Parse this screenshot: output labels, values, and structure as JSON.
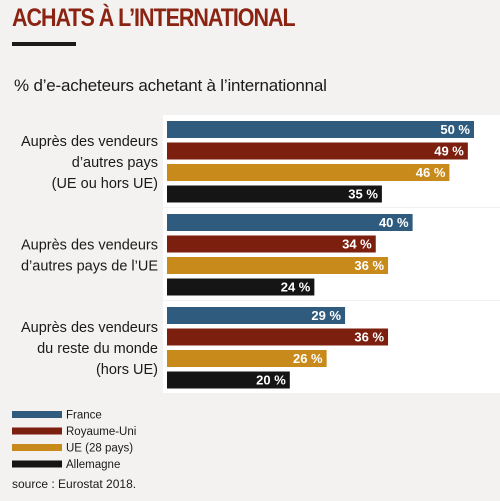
{
  "header": {
    "title": "ACHATS À L’INTERNATIONAL",
    "subtitle": "% d’e-acheteurs achetant à l’internationnal"
  },
  "footer": {
    "source": "source : Eurostat 2018."
  },
  "colors": {
    "France": "#2e5b7e",
    "Royaume-Uni": "#7d1f0f",
    "UE (28 pays)": "#c98a1c",
    "Allemagne": "#151515"
  },
  "chart_data": {
    "type": "bar",
    "orientation": "horizontal",
    "title": "",
    "xlabel": "",
    "ylabel": "",
    "xlim": [
      0,
      56
    ],
    "grid": false,
    "legend_position": "bottom-left",
    "categories": [
      [
        "Auprès des vendeurs",
        "d’autres pays",
        "(UE ou hors UE)"
      ],
      [
        "Auprès des vendeurs",
        "d’autres pays de l’UE"
      ],
      [
        "Auprès des vendeurs",
        "du reste du monde",
        "(hors UE)"
      ]
    ],
    "value_suffix": "%",
    "series": [
      {
        "name": "France",
        "values": [
          50,
          40,
          29
        ]
      },
      {
        "name": "Royaume-Uni",
        "values": [
          49,
          34,
          36
        ]
      },
      {
        "name": "UE (28 pays)",
        "values": [
          46,
          36,
          26
        ]
      },
      {
        "name": "Allemagne",
        "values": [
          35,
          24,
          20
        ]
      }
    ]
  }
}
